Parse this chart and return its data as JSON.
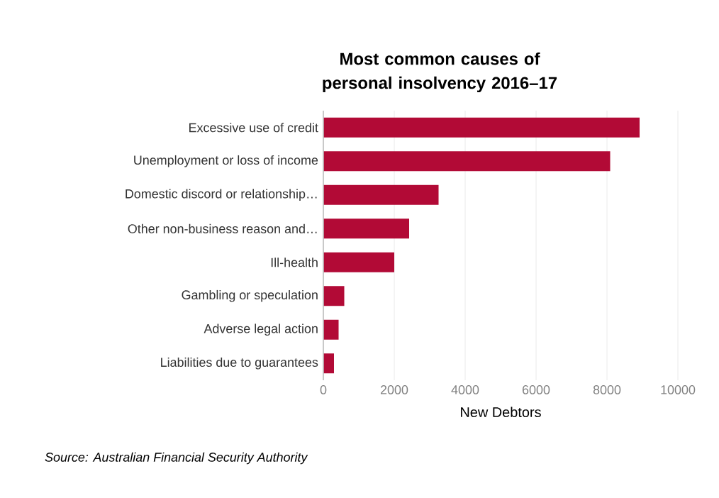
{
  "chart_data": {
    "type": "bar",
    "orientation": "horizontal",
    "title": "Most common causes of personal insolvency 2016–17",
    "xlabel": "New Debtors",
    "categories": [
      "Excessive use of credit",
      "Unemployment or loss of income",
      "Domestic discord or relationship…",
      "Other non-business reason and…",
      "Ill-health",
      "Gambling or speculation",
      "Adverse legal action",
      "Liabilities due to guarantees"
    ],
    "values": [
      8920,
      8090,
      3250,
      2420,
      2000,
      590,
      430,
      300
    ],
    "color": "#b20a36",
    "xlim": [
      0,
      10000
    ],
    "xticks": [
      0,
      2000,
      4000,
      6000,
      8000,
      10000
    ],
    "grid": "x",
    "annotations": [
      "*Source: Australian Financial Security Authority*"
    ]
  }
}
